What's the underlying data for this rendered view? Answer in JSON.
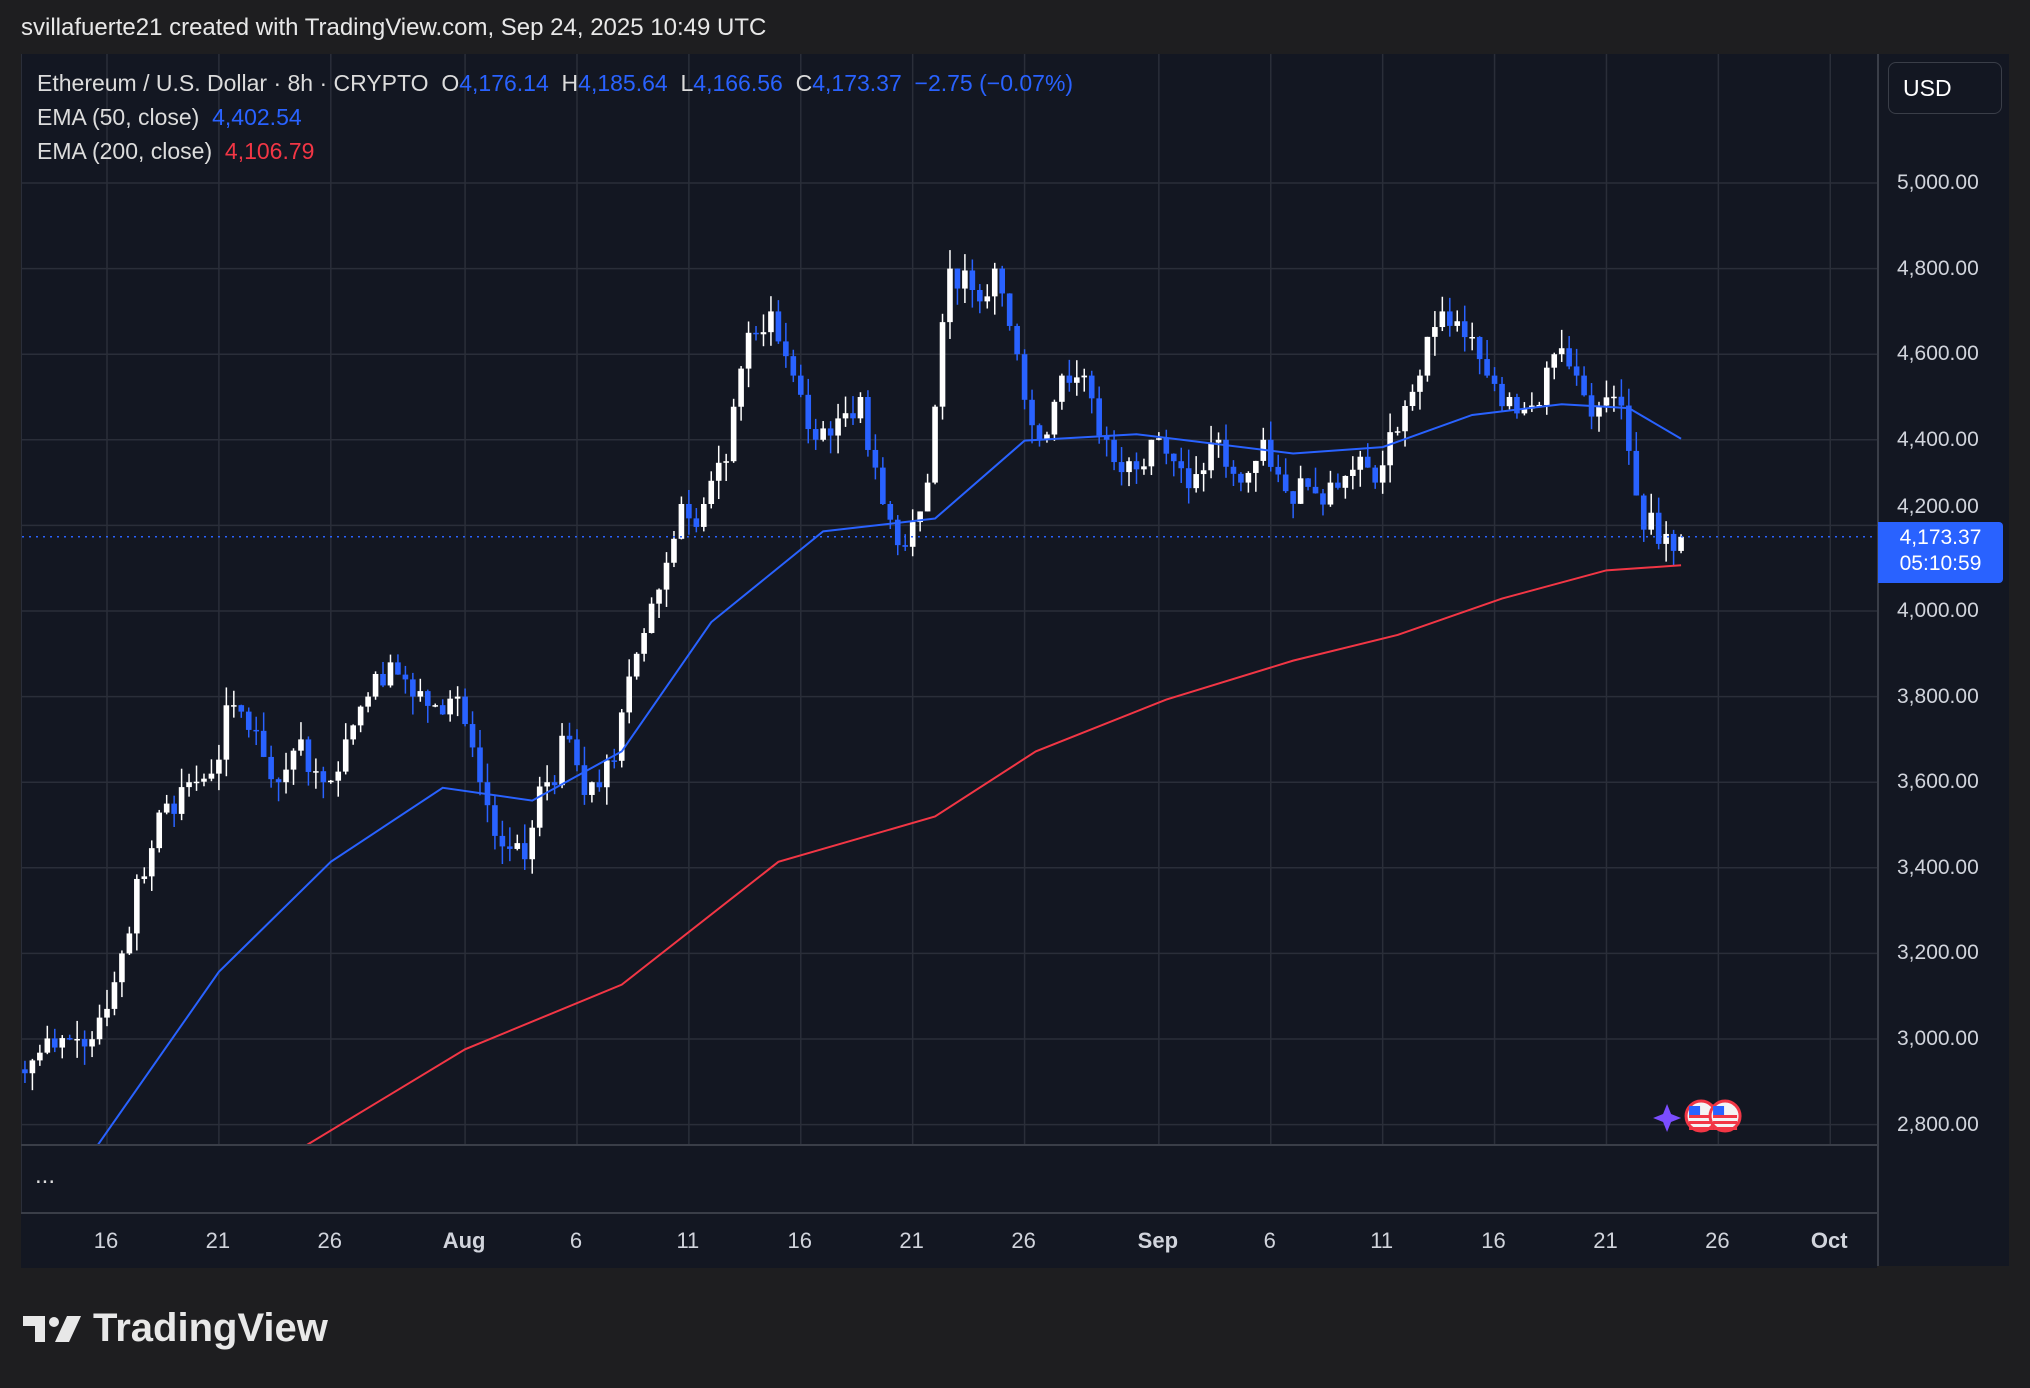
{
  "attribution": "svillafuerte21 created with TradingView.com, Sep 24, 2025 10:49 UTC",
  "legend": {
    "symbol": "Ethereum / U.S. Dollar · 8h · CRYPTO",
    "o_label": "O",
    "o": "4,176.14",
    "h_label": "H",
    "h": "4,185.64",
    "l_label": "L",
    "l": "4,166.56",
    "c_label": "C",
    "c": "4,173.37",
    "change": "−2.75 (−0.07%)",
    "ema50_label": "EMA (50, close)",
    "ema50": "4,402.54",
    "ema200_label": "EMA (200, close)",
    "ema200": "4,106.79"
  },
  "currency_button": "USD",
  "price_tag": {
    "price": "4,173.37",
    "countdown": "05:10:59"
  },
  "pane_more": "...",
  "brand": "TradingView",
  "colors": {
    "up": "#ffffff",
    "down": "#2962ff",
    "ema50": "#2962ff",
    "ema200": "#f23645",
    "background": "#131722",
    "grid": "#2a2e39"
  },
  "chart_data": {
    "type": "candlestick",
    "interval": "8h",
    "ylim": [
      2750,
      5100
    ],
    "y_ticks": [
      "5,000.00",
      "4,800.00",
      "4,600.00",
      "4,400.00",
      "4,200.00",
      "4,000.00",
      "3,800.00",
      "3,600.00",
      "3,400.00",
      "3,200.00",
      "3,000.00",
      "2,800.00"
    ],
    "x_ticks": [
      {
        "label": "16",
        "date": "2025-07-16"
      },
      {
        "label": "21",
        "date": "2025-07-21"
      },
      {
        "label": "26",
        "date": "2025-07-26"
      },
      {
        "label": "Aug",
        "date": "2025-08-01",
        "bold": true
      },
      {
        "label": "6",
        "date": "2025-08-06"
      },
      {
        "label": "11",
        "date": "2025-08-11"
      },
      {
        "label": "16",
        "date": "2025-08-16"
      },
      {
        "label": "21",
        "date": "2025-08-21"
      },
      {
        "label": "26",
        "date": "2025-08-26"
      },
      {
        "label": "Sep",
        "date": "2025-09-01",
        "bold": true
      },
      {
        "label": "6",
        "date": "2025-09-06"
      },
      {
        "label": "11",
        "date": "2025-09-11"
      },
      {
        "label": "16",
        "date": "2025-09-16"
      },
      {
        "label": "21",
        "date": "2025-09-21"
      },
      {
        "label": "26",
        "date": "2025-09-26"
      },
      {
        "label": "Oct",
        "date": "2025-10-01",
        "bold": true
      }
    ],
    "daily_close_approx": [
      [
        "2025-07-12",
        2950
      ],
      [
        "2025-07-13",
        2980
      ],
      [
        "2025-07-14",
        3000
      ],
      [
        "2025-07-15",
        3050
      ],
      [
        "2025-07-16",
        3200
      ],
      [
        "2025-07-17",
        3380
      ],
      [
        "2025-07-18",
        3550
      ],
      [
        "2025-07-19",
        3600
      ],
      [
        "2025-07-20",
        3620
      ],
      [
        "2025-07-21",
        3780
      ],
      [
        "2025-07-22",
        3720
      ],
      [
        "2025-07-23",
        3600
      ],
      [
        "2025-07-24",
        3700
      ],
      [
        "2025-07-25",
        3600
      ],
      [
        "2025-07-26",
        3700
      ],
      [
        "2025-07-27",
        3800
      ],
      [
        "2025-07-28",
        3880
      ],
      [
        "2025-07-29",
        3800
      ],
      [
        "2025-07-30",
        3780
      ],
      [
        "2025-07-31",
        3800
      ],
      [
        "2025-08-01",
        3600
      ],
      [
        "2025-08-02",
        3450
      ],
      [
        "2025-08-03",
        3420
      ],
      [
        "2025-08-04",
        3600
      ],
      [
        "2025-08-05",
        3700
      ],
      [
        "2025-08-06",
        3600
      ],
      [
        "2025-08-07",
        3650
      ],
      [
        "2025-08-08",
        3900
      ],
      [
        "2025-08-09",
        4050
      ],
      [
        "2025-08-10",
        4250
      ],
      [
        "2025-08-11",
        4250
      ],
      [
        "2025-08-12",
        4350
      ],
      [
        "2025-08-13",
        4650
      ],
      [
        "2025-08-14",
        4700
      ],
      [
        "2025-08-15",
        4550
      ],
      [
        "2025-08-16",
        4400
      ],
      [
        "2025-08-17",
        4450
      ],
      [
        "2025-08-18",
        4500
      ],
      [
        "2025-08-19",
        4250
      ],
      [
        "2025-08-20",
        4150
      ],
      [
        "2025-08-21",
        4300
      ],
      [
        "2025-08-22",
        4800
      ],
      [
        "2025-08-23",
        4750
      ],
      [
        "2025-08-24",
        4800
      ],
      [
        "2025-08-25",
        4600
      ],
      [
        "2025-08-26",
        4400
      ],
      [
        "2025-08-27",
        4550
      ],
      [
        "2025-08-28",
        4550
      ],
      [
        "2025-08-29",
        4400
      ],
      [
        "2025-08-30",
        4350
      ],
      [
        "2025-08-31",
        4400
      ],
      [
        "2025-09-01",
        4350
      ],
      [
        "2025-09-02",
        4320
      ],
      [
        "2025-09-03",
        4400
      ],
      [
        "2025-09-04",
        4300
      ],
      [
        "2025-09-05",
        4400
      ],
      [
        "2025-09-06",
        4280
      ],
      [
        "2025-09-07",
        4290
      ],
      [
        "2025-09-08",
        4300
      ],
      [
        "2025-09-09",
        4330
      ],
      [
        "2025-09-10",
        4300
      ],
      [
        "2025-09-11",
        4420
      ],
      [
        "2025-09-12",
        4550
      ],
      [
        "2025-09-13",
        4700
      ],
      [
        "2025-09-14",
        4640
      ],
      [
        "2025-09-15",
        4550
      ],
      [
        "2025-09-16",
        4500
      ],
      [
        "2025-09-17",
        4480
      ],
      [
        "2025-09-18",
        4600
      ],
      [
        "2025-09-19",
        4550
      ],
      [
        "2025-09-20",
        4480
      ],
      [
        "2025-09-21",
        4480
      ],
      [
        "2025-09-22",
        4190
      ],
      [
        "2025-09-23",
        4180
      ],
      [
        "2025-09-24",
        4173.37
      ]
    ],
    "ema50": [
      [
        "2025-07-15T14:00",
        2752
      ],
      [
        "2025-07-21",
        3157
      ],
      [
        "2025-07-26",
        3414
      ],
      [
        "2025-07-31",
        3587
      ],
      [
        "2025-08-04",
        3557
      ],
      [
        "2025-08-08",
        3672
      ],
      [
        "2025-08-12",
        3974
      ],
      [
        "2025-08-17",
        4186
      ],
      [
        "2025-08-22",
        4216
      ],
      [
        "2025-08-26",
        4398
      ],
      [
        "2025-08-31",
        4413
      ],
      [
        "2025-09-07",
        4368
      ],
      [
        "2025-09-11",
        4383
      ],
      [
        "2025-09-15",
        4458
      ],
      [
        "2025-09-19",
        4483
      ],
      [
        "2025-09-22",
        4474
      ],
      [
        "2025-09-24T08:00",
        4402.54
      ]
    ],
    "ema200": [
      [
        "2025-07-24T22:00",
        2752
      ],
      [
        "2025-08-01",
        2976
      ],
      [
        "2025-08-08",
        3127
      ],
      [
        "2025-08-15",
        3414
      ],
      [
        "2025-08-22",
        3520
      ],
      [
        "2025-08-26T12:00",
        3672
      ],
      [
        "2025-09-01T08:00",
        3793
      ],
      [
        "2025-09-07",
        3884
      ],
      [
        "2025-09-11T16:00",
        3944
      ],
      [
        "2025-09-16T08:00",
        4029
      ],
      [
        "2025-09-21",
        4095
      ],
      [
        "2025-09-24T08:00",
        4106.79
      ]
    ],
    "last_price": 4173.37
  }
}
